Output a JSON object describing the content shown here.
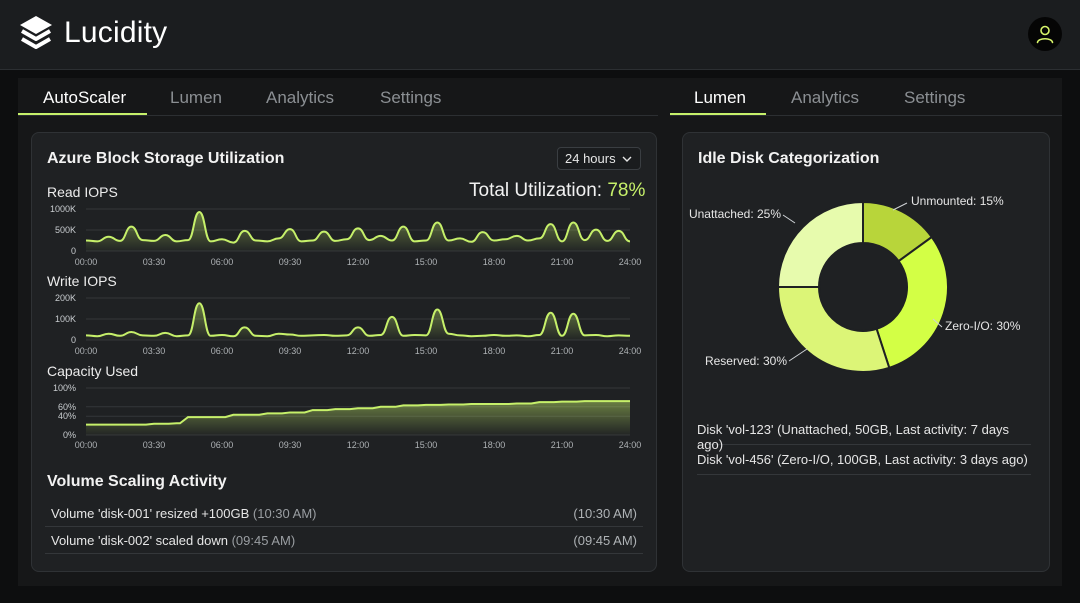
{
  "app": {
    "name": "Lucidity"
  },
  "colors": {
    "accent": "#c6f06a",
    "background": "#0d0e0f",
    "card": "#1f2123",
    "header": "#1b1d1f"
  },
  "icons": {
    "logo": "layers-icon",
    "user": "user-icon",
    "dropdown": "chevron-down-icon"
  },
  "left_tabs": [
    {
      "label": "AutoScaler",
      "active": true
    },
    {
      "label": "Lumen",
      "active": false
    },
    {
      "label": "Analytics",
      "active": false
    },
    {
      "label": "Settings",
      "active": false
    }
  ],
  "right_tabs": [
    {
      "label": "Lumen",
      "active": true
    },
    {
      "label": "Analytics",
      "active": false
    },
    {
      "label": "Settings",
      "active": false
    }
  ],
  "storage": {
    "title": "Azure Block Storage Utilization",
    "time_range": "24 hours",
    "total_label": "Total Utilization:",
    "total_value": "78%"
  },
  "chart_data": [
    {
      "type": "line",
      "title": "Read IOPS",
      "x_ticks": [
        "00:00",
        "03:30",
        "06:00",
        "09:30",
        "12:00",
        "15:00",
        "18:00",
        "21:00",
        "24:00"
      ],
      "y_ticks": [
        "1000K",
        "500K",
        "0"
      ],
      "ylim": [
        0,
        1000
      ],
      "x": [
        0,
        0.5,
        1,
        1.5,
        2,
        2.5,
        3,
        3.5,
        4,
        4.5,
        5,
        5.5,
        6,
        6.5,
        7,
        7.5,
        8,
        8.5,
        9,
        9.5,
        10,
        10.5,
        11,
        11.5,
        12,
        12.5,
        13,
        13.5,
        14,
        14.5,
        15,
        15.5,
        16,
        16.5,
        17,
        17.5,
        18,
        18.5,
        19,
        19.5,
        20,
        20.5,
        21,
        21.5,
        22,
        22.5,
        23,
        23.5,
        24
      ],
      "values": [
        250,
        230,
        340,
        240,
        580,
        260,
        240,
        380,
        230,
        260,
        930,
        230,
        280,
        200,
        480,
        250,
        230,
        300,
        520,
        230,
        250,
        460,
        240,
        280,
        540,
        260,
        360,
        250,
        580,
        230,
        250,
        680,
        250,
        300,
        220,
        450,
        250,
        280,
        360,
        250,
        300,
        640,
        230,
        680,
        260,
        510,
        240,
        480,
        230
      ]
    },
    {
      "type": "line",
      "title": "Write IOPS",
      "x_ticks": [
        "00:00",
        "03:30",
        "06:00",
        "09:30",
        "12:00",
        "15:00",
        "18:00",
        "21:00",
        "24:00"
      ],
      "y_ticks": [
        "200K",
        "100K",
        "0"
      ],
      "ylim": [
        0,
        200
      ],
      "x": [
        0,
        0.5,
        1,
        1.5,
        2,
        2.5,
        3,
        3.5,
        4,
        4.5,
        5,
        5.5,
        6,
        6.5,
        7,
        7.5,
        8,
        8.5,
        9,
        9.5,
        10,
        10.5,
        11,
        11.5,
        12,
        12.5,
        13,
        13.5,
        14,
        14.5,
        15,
        15.5,
        16,
        16.5,
        17,
        17.5,
        18,
        18.5,
        19,
        19.5,
        20,
        20.5,
        21,
        21.5,
        22,
        22.5,
        23,
        23.5,
        24
      ],
      "values": [
        22,
        18,
        30,
        20,
        38,
        22,
        20,
        34,
        18,
        22,
        175,
        20,
        24,
        18,
        60,
        20,
        18,
        30,
        26,
        20,
        22,
        24,
        20,
        22,
        60,
        20,
        24,
        110,
        20,
        24,
        22,
        145,
        30,
        22,
        18,
        20,
        24,
        20,
        22,
        18,
        24,
        130,
        20,
        125,
        22,
        24,
        18,
        22,
        20
      ]
    },
    {
      "type": "area",
      "title": "Capacity Used",
      "x_ticks": [
        "00:00",
        "03:30",
        "06:00",
        "09:30",
        "12:00",
        "15:00",
        "18:00",
        "21:00",
        "24:00"
      ],
      "y_ticks": [
        "100%",
        "60%",
        "40%",
        "0%"
      ],
      "ylim": [
        0,
        100
      ],
      "x": [
        0,
        1,
        2,
        3,
        4,
        4.5,
        6,
        6.5,
        8,
        9,
        10,
        11,
        12,
        13,
        14,
        15,
        16,
        17,
        18,
        19,
        20,
        21,
        22,
        23,
        24
      ],
      "values": [
        22,
        22,
        22,
        24,
        25,
        38,
        38,
        43,
        46,
        48,
        53,
        55,
        57,
        60,
        63,
        64,
        65,
        66,
        66,
        67,
        70,
        71,
        72,
        72,
        72
      ]
    },
    {
      "type": "pie",
      "title": "Idle Disk Categorization",
      "categories": [
        "Unmounted",
        "Zero-I/O",
        "Reserved",
        "Unattached"
      ],
      "values": [
        15,
        30,
        30,
        25
      ],
      "labels": [
        "Unmounted: 15%",
        "Zero-I/O: 30%",
        "Reserved: 30%",
        "Unattached: 25%"
      ],
      "colors": [
        "#b8d53a",
        "#d3ff45",
        "#dcf577",
        "#e7fbad"
      ]
    }
  ],
  "activity": {
    "title": "Volume Scaling Activity",
    "items": [
      {
        "text": "Volume 'disk-001' resized +100GB",
        "paren": "(10:30 AM)",
        "time": "(10:30 AM)"
      },
      {
        "text": "Volume 'disk-002' scaled down",
        "paren": "(09:45 AM)",
        "time": "(09:45 AM)"
      }
    ]
  },
  "idle": {
    "title": "Idle Disk Categorization",
    "disks": [
      "Disk 'vol-123' (Unattached, 50GB, Last activity: 7 days ago)",
      "Disk 'vol-456' (Zero-I/O, 100GB, Last activity: 3 days ago)"
    ]
  }
}
